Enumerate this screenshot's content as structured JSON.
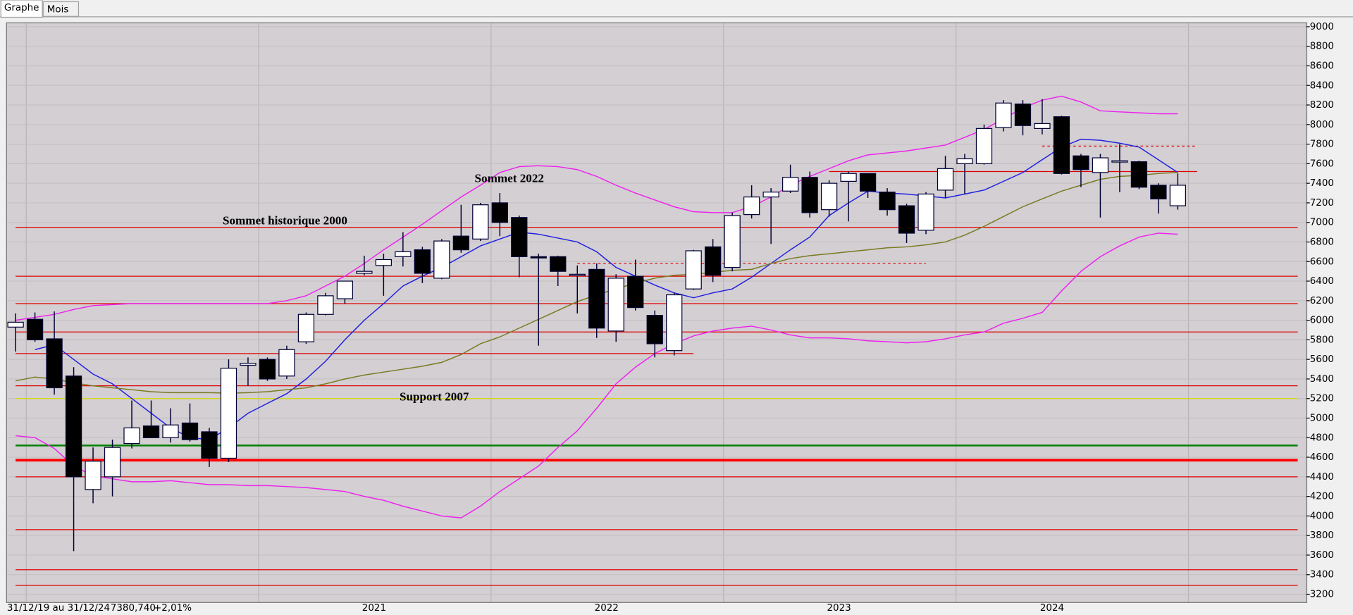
{
  "ui": {
    "tabs": [
      "Graphe",
      "Mois"
    ],
    "status": "31/12/19 au 31/12/24",
    "last": "7380,740",
    "change": "+2,01%"
  },
  "chart_data": {
    "type": "candlestick",
    "categories": [
      null,
      null,
      null,
      null,
      null,
      null,
      null,
      null,
      null,
      null,
      null,
      null,
      null,
      null,
      null,
      null,
      null,
      null,
      null,
      "2021",
      null,
      null,
      null,
      null,
      null,
      null,
      null,
      null,
      null,
      null,
      null,
      "2022",
      null,
      null,
      null,
      null,
      null,
      null,
      null,
      null,
      null,
      null,
      null,
      "2023",
      null,
      null,
      null,
      null,
      null,
      null,
      null,
      null,
      null,
      null,
      "2024",
      null,
      null,
      null,
      null,
      null,
      null
    ],
    "open": [
      5930,
      6010,
      5810,
      5430,
      4270,
      4400,
      4740,
      4920,
      4800,
      4950,
      4860,
      4590,
      5540,
      5600,
      5430,
      5780,
      6060,
      6220,
      6480,
      6560,
      6650,
      6720,
      6430,
      6860,
      6830,
      7200,
      7050,
      6650,
      6650,
      6460,
      6520,
      5890,
      6450,
      6050,
      5690,
      6320,
      6750,
      6540,
      7080,
      7260,
      7320,
      7460,
      7130,
      7420,
      7500,
      7310,
      7170,
      6920,
      7330,
      7600,
      7600,
      7970,
      8210,
      7960,
      8080,
      7680,
      7510,
      7620,
      7620,
      7380,
      7170
    ],
    "high": [
      6070,
      6080,
      6090,
      5520,
      4700,
      4780,
      5180,
      5180,
      5100,
      5150,
      4900,
      5600,
      5620,
      5620,
      5740,
      6080,
      6280,
      6400,
      6660,
      6680,
      6900,
      6750,
      6830,
      7180,
      7200,
      7300,
      7070,
      6680,
      6660,
      6560,
      6580,
      6470,
      6620,
      6100,
      6280,
      6720,
      6830,
      7100,
      7380,
      7350,
      7590,
      7520,
      7430,
      7520,
      7500,
      7350,
      7190,
      7310,
      7680,
      7700,
      8000,
      8250,
      8250,
      8260,
      8090,
      7700,
      7700,
      7800,
      7630,
      7400,
      7500
    ],
    "low": [
      5680,
      5780,
      5240,
      3640,
      4130,
      4200,
      4690,
      4800,
      4750,
      4760,
      4500,
      4550,
      5330,
      5380,
      5400,
      5760,
      6050,
      6170,
      6460,
      6250,
      6550,
      6380,
      6420,
      6690,
      6810,
      6860,
      6440,
      5740,
      6350,
      6070,
      5820,
      5780,
      6100,
      5620,
      5640,
      6310,
      6390,
      6500,
      7040,
      6780,
      7300,
      7050,
      7060,
      7010,
      7250,
      7070,
      6790,
      6880,
      7250,
      7290,
      7590,
      7930,
      7890,
      7900,
      7490,
      7360,
      7050,
      7310,
      7340,
      7090,
      7130
    ],
    "close": [
      5980,
      5800,
      5310,
      4400,
      4560,
      4700,
      4900,
      4800,
      4930,
      4780,
      4590,
      5510,
      5560,
      5400,
      5700,
      6060,
      6250,
      6400,
      6500,
      6620,
      6700,
      6480,
      6810,
      6720,
      7180,
      7000,
      6650,
      6640,
      6500,
      6470,
      5920,
      6430,
      6130,
      5760,
      6260,
      6710,
      6460,
      7070,
      7260,
      7310,
      7460,
      7100,
      7400,
      7500,
      7320,
      7130,
      6890,
      7290,
      7550,
      7650,
      7960,
      8220,
      7990,
      8010,
      7500,
      7540,
      7660,
      7630,
      7360,
      7240,
      7380
    ],
    "up_color": "#ffffff",
    "down_color": "#000000",
    "edge_color": "#000033",
    "lines": [
      {
        "color": "#2020e0",
        "values": [
          null,
          5700,
          5750,
          5600,
          5450,
          5350,
          5200,
          5050,
          4900,
          4800,
          4780,
          4900,
          5050,
          5150,
          5250,
          5400,
          5580,
          5800,
          6000,
          6170,
          6350,
          6450,
          6540,
          6650,
          6760,
          6830,
          6900,
          6880,
          6840,
          6800,
          6700,
          6540,
          6450,
          6360,
          6280,
          6230,
          6280,
          6320,
          6440,
          6580,
          6720,
          6850,
          7070,
          7200,
          7320,
          7300,
          7290,
          7270,
          7250,
          7290,
          7330,
          7420,
          7510,
          7640,
          7770,
          7850,
          7840,
          7810,
          7770,
          7640,
          7510
        ]
      },
      {
        "color": "#7a7a20",
        "values": [
          5380,
          5420,
          5400,
          5360,
          5330,
          5310,
          5290,
          5270,
          5260,
          5260,
          5260,
          5255,
          5260,
          5270,
          5290,
          5310,
          5350,
          5400,
          5440,
          5470,
          5500,
          5530,
          5570,
          5650,
          5760,
          5830,
          5920,
          6010,
          6100,
          6190,
          6260,
          6320,
          6380,
          6430,
          6460,
          6470,
          6490,
          6510,
          6520,
          6580,
          6630,
          6660,
          6680,
          6700,
          6720,
          6740,
          6750,
          6770,
          6800,
          6870,
          6960,
          7060,
          7160,
          7240,
          7320,
          7380,
          7440,
          7470,
          7480,
          7500,
          7510
        ]
      },
      {
        "color": "#ee22ee",
        "values": [
          6000,
          6030,
          6060,
          6110,
          6150,
          6160,
          6170,
          6170,
          6170,
          6170,
          6170,
          6170,
          6170,
          6170,
          6200,
          6250,
          6350,
          6450,
          6580,
          6720,
          6850,
          6980,
          7120,
          7260,
          7380,
          7510,
          7570,
          7580,
          7570,
          7540,
          7470,
          7380,
          7300,
          7230,
          7160,
          7110,
          7100,
          7100,
          7160,
          7260,
          7380,
          7470,
          7550,
          7630,
          7690,
          7710,
          7730,
          7760,
          7790,
          7870,
          7950,
          8060,
          8170,
          8250,
          8290,
          8230,
          8140,
          8130,
          8120,
          8110,
          8110
        ]
      },
      {
        "color": "#ee22ee",
        "values": [
          4820,
          4800,
          4690,
          4510,
          4410,
          4380,
          4350,
          4350,
          4360,
          4340,
          4320,
          4320,
          4310,
          4310,
          4300,
          4290,
          4270,
          4250,
          4200,
          4160,
          4100,
          4050,
          4000,
          3980,
          4100,
          4250,
          4380,
          4510,
          4700,
          4870,
          5100,
          5350,
          5520,
          5660,
          5760,
          5840,
          5890,
          5920,
          5940,
          5900,
          5850,
          5820,
          5820,
          5810,
          5790,
          5780,
          5770,
          5780,
          5810,
          5850,
          5880,
          5970,
          6020,
          6080,
          6300,
          6500,
          6650,
          6760,
          6850,
          6890,
          6880
        ]
      }
    ],
    "levels": [
      {
        "value": 6950,
        "color": "#e00000",
        "width": 1
      },
      {
        "value": 6450,
        "color": "#e00000",
        "width": 1
      },
      {
        "value": 6170,
        "color": "#e00000",
        "width": 1
      },
      {
        "value": 5880,
        "color": "#e00000",
        "width": 1
      },
      {
        "value": 5660,
        "color": "#e00000",
        "width": 1,
        "x": [
          0,
          35
        ]
      },
      {
        "value": 5330,
        "color": "#e00000",
        "width": 1
      },
      {
        "value": 5200,
        "color": "#d8d800",
        "width": 1
      },
      {
        "value": 4720,
        "color": "#008000",
        "width": 2
      },
      {
        "value": 4570,
        "color": "#ff0000",
        "width": 3
      },
      {
        "value": 4400,
        "color": "#e00000",
        "width": 1
      },
      {
        "value": 3860,
        "color": "#e00000",
        "width": 1
      },
      {
        "value": 3450,
        "color": "#e00000",
        "width": 1
      },
      {
        "value": 3290,
        "color": "#e00000",
        "width": 1
      },
      {
        "value": 6580,
        "color": "#e00000",
        "width": 1,
        "dashed": true,
        "x": [
          29,
          47
        ]
      },
      {
        "value": 7520,
        "color": "#e00000",
        "width": 1,
        "x": [
          42,
          61
        ]
      },
      {
        "value": 7780,
        "color": "#e00000",
        "width": 1,
        "dashed": true,
        "x": [
          53,
          61
        ]
      }
    ],
    "annotations": [
      "Sommet historique 2000",
      "Sommet 2022",
      "Support 2007"
    ],
    "ylim": [
      3120,
      9035
    ],
    "yticks": [
      3200,
      3400,
      3600,
      3800,
      4000,
      4200,
      4400,
      4600,
      4800,
      5000,
      5200,
      5400,
      5600,
      5800,
      6000,
      6200,
      6400,
      6600,
      6800,
      7000,
      7200,
      7400,
      7600,
      7800,
      8000,
      8200,
      8400,
      8600,
      8800,
      9000
    ],
    "grid": true
  }
}
